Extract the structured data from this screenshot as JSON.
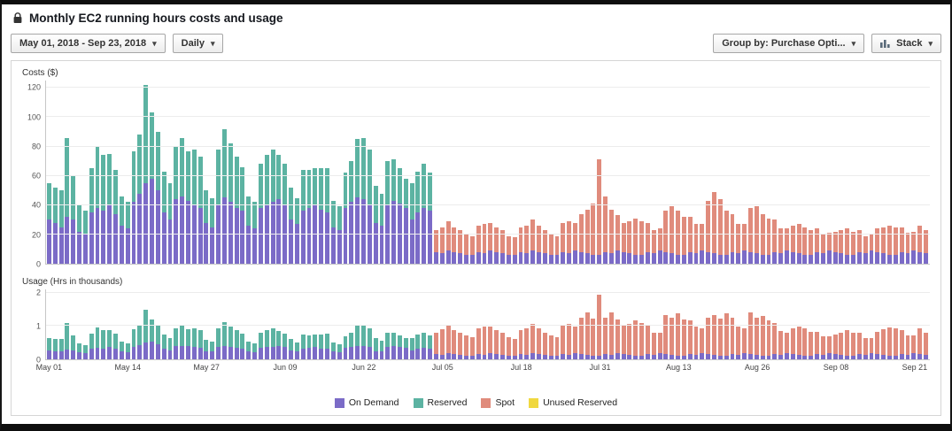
{
  "header": {
    "title": "Monthly EC2 running hours costs and usage"
  },
  "toolbar": {
    "date_range": "May 01, 2018 - Sep 23, 2018",
    "granularity": "Daily",
    "group_by": "Group by: Purchase Opti...",
    "stack": "Stack"
  },
  "legend": [
    {
      "label": "On Demand",
      "color": "#7b6bc7"
    },
    {
      "label": "Reserved",
      "color": "#5cb3a2"
    },
    {
      "label": "Spot",
      "color": "#e08b7c"
    },
    {
      "label": "Unused Reserved",
      "color": "#f0d83f"
    }
  ],
  "chart_data": [
    {
      "type": "bar",
      "stacked": true,
      "title": "Costs ($)",
      "n_bars": 146,
      "ymax": 125,
      "y_ticks": [
        0,
        20,
        40,
        60,
        80,
        100,
        120
      ],
      "series": [
        {
          "name": "On Demand",
          "color": "#7b6bc7",
          "values": [
            30,
            28,
            25,
            32,
            30,
            22,
            20,
            35,
            38,
            36,
            40,
            34,
            26,
            24,
            42,
            48,
            55,
            58,
            50,
            35,
            30,
            44,
            46,
            43,
            40,
            38,
            28,
            25,
            40,
            45,
            42,
            38,
            36,
            26,
            24,
            38,
            40,
            42,
            44,
            40,
            30,
            27,
            36,
            38,
            40,
            37,
            35,
            25,
            23,
            38,
            42,
            45,
            44,
            40,
            28,
            26,
            40,
            43,
            41,
            38,
            30,
            35,
            38,
            36,
            8,
            7,
            9,
            8,
            7,
            6,
            6,
            8,
            7,
            9,
            8,
            7,
            6,
            6,
            8,
            7,
            9,
            8,
            7,
            6,
            6,
            8,
            7,
            9,
            8,
            7,
            6,
            6,
            8,
            7,
            9,
            8,
            7,
            6,
            6,
            8,
            7,
            9,
            8,
            7,
            6,
            6,
            8,
            7,
            9,
            8,
            7,
            6,
            6,
            8,
            7,
            9,
            8,
            7,
            6,
            6,
            8,
            7,
            9,
            8,
            7,
            6,
            6,
            8,
            7,
            9,
            8,
            7,
            6,
            6,
            8,
            7,
            9,
            8,
            7,
            6,
            6,
            8,
            7,
            9,
            8,
            7
          ]
        },
        {
          "name": "Reserved",
          "color": "#5cb3a2",
          "values": [
            25,
            24,
            25,
            54,
            30,
            18,
            16,
            30,
            42,
            38,
            35,
            30,
            20,
            18,
            35,
            40,
            67,
            45,
            40,
            28,
            25,
            36,
            40,
            34,
            38,
            35,
            22,
            20,
            38,
            47,
            40,
            35,
            30,
            20,
            18,
            30,
            34,
            36,
            30,
            28,
            22,
            18,
            28,
            26,
            25,
            28,
            30,
            18,
            16,
            24,
            28,
            40,
            42,
            38,
            25,
            22,
            30,
            28,
            24,
            20,
            25,
            28,
            30,
            26
          ]
        },
        {
          "name": "Spot",
          "color": "#e08b7c",
          "start": 64,
          "values": [
            15,
            18,
            20,
            17,
            16,
            14,
            13,
            18,
            20,
            19,
            17,
            16,
            13,
            12,
            17,
            19,
            21,
            18,
            16,
            14,
            13,
            20,
            22,
            19,
            26,
            30,
            35,
            65,
            38,
            30,
            24,
            20,
            22,
            25,
            23,
            20,
            16,
            15,
            28,
            32,
            30,
            26,
            24,
            20,
            18,
            35,
            42,
            38,
            30,
            26,
            20,
            18,
            30,
            32,
            28,
            25,
            22,
            17,
            15,
            18,
            20,
            19,
            17,
            16,
            13,
            12,
            14,
            16,
            18,
            16,
            15,
            12,
            11,
            16,
            18,
            20,
            19,
            17,
            14,
            13,
            18,
            16
          ]
        },
        {
          "name": "Unused Reserved",
          "color": "#f0d83f",
          "values": []
        }
      ]
    },
    {
      "type": "bar",
      "stacked": true,
      "title": "Usage (Hrs in thousands)",
      "n_bars": 146,
      "ymax": 2.1,
      "y_ticks": [
        0,
        1,
        2
      ],
      "x_ticks": [
        "May 01",
        "May 14",
        "May 27",
        "Jun 09",
        "Jun 22",
        "Jul 05",
        "Jul 18",
        "Jul 31",
        "Aug 13",
        "Aug 26",
        "Sep 08",
        "Sep 21"
      ],
      "x_tick_positions": [
        0,
        13,
        26,
        39,
        52,
        65,
        78,
        91,
        104,
        117,
        130,
        143
      ],
      "series": [
        {
          "name": "On Demand",
          "color": "#7b6bc7",
          "values": [
            0.27,
            0.25,
            0.23,
            0.29,
            0.27,
            0.2,
            0.18,
            0.32,
            0.34,
            0.32,
            0.36,
            0.31,
            0.23,
            0.22,
            0.38,
            0.43,
            0.5,
            0.52,
            0.45,
            0.32,
            0.27,
            0.4,
            0.41,
            0.39,
            0.36,
            0.34,
            0.25,
            0.23,
            0.36,
            0.41,
            0.38,
            0.34,
            0.32,
            0.23,
            0.22,
            0.34,
            0.36,
            0.38,
            0.4,
            0.36,
            0.27,
            0.24,
            0.32,
            0.34,
            0.36,
            0.33,
            0.32,
            0.23,
            0.21,
            0.34,
            0.38,
            0.41,
            0.4,
            0.36,
            0.25,
            0.23,
            0.36,
            0.39,
            0.37,
            0.34,
            0.27,
            0.32,
            0.34,
            0.32,
            0.16,
            0.14,
            0.18,
            0.16,
            0.14,
            0.12,
            0.12,
            0.16,
            0.14,
            0.18,
            0.16,
            0.14,
            0.12,
            0.12,
            0.16,
            0.14,
            0.18,
            0.16,
            0.14,
            0.12,
            0.12,
            0.16,
            0.14,
            0.18,
            0.16,
            0.14,
            0.12,
            0.12,
            0.16,
            0.14,
            0.18,
            0.16,
            0.14,
            0.12,
            0.12,
            0.16,
            0.14,
            0.18,
            0.16,
            0.14,
            0.12,
            0.12,
            0.16,
            0.14,
            0.18,
            0.16,
            0.14,
            0.12,
            0.12,
            0.16,
            0.14,
            0.18,
            0.16,
            0.14,
            0.12,
            0.12,
            0.16,
            0.14,
            0.18,
            0.16,
            0.14,
            0.12,
            0.12,
            0.16,
            0.14,
            0.18,
            0.16,
            0.14,
            0.12,
            0.12,
            0.16,
            0.14,
            0.18,
            0.16,
            0.14,
            0.12,
            0.12,
            0.16,
            0.14,
            0.18,
            0.16,
            0.14
          ]
        },
        {
          "name": "Reserved",
          "color": "#5cb3a2",
          "values": [
            0.38,
            0.36,
            0.38,
            0.81,
            0.45,
            0.27,
            0.24,
            0.45,
            0.63,
            0.57,
            0.53,
            0.45,
            0.3,
            0.27,
            0.53,
            0.6,
            1.0,
            0.68,
            0.6,
            0.42,
            0.38,
            0.54,
            0.6,
            0.51,
            0.57,
            0.53,
            0.33,
            0.3,
            0.57,
            0.71,
            0.6,
            0.53,
            0.45,
            0.3,
            0.27,
            0.45,
            0.51,
            0.54,
            0.45,
            0.42,
            0.33,
            0.27,
            0.42,
            0.39,
            0.38,
            0.42,
            0.45,
            0.27,
            0.24,
            0.36,
            0.42,
            0.6,
            0.63,
            0.57,
            0.38,
            0.33,
            0.45,
            0.42,
            0.36,
            0.3,
            0.38,
            0.42,
            0.45,
            0.39
          ]
        },
        {
          "name": "Spot",
          "color": "#e08b7c",
          "start": 64,
          "values": [
            0.63,
            0.76,
            0.84,
            0.71,
            0.67,
            0.59,
            0.55,
            0.76,
            0.84,
            0.8,
            0.71,
            0.67,
            0.55,
            0.5,
            0.71,
            0.8,
            0.88,
            0.76,
            0.67,
            0.59,
            0.55,
            0.84,
            0.92,
            0.8,
            1.09,
            1.26,
            1.1,
            1.82,
            1.1,
            1.26,
            1.01,
            0.84,
            0.92,
            1.05,
            0.97,
            0.84,
            0.67,
            0.63,
            1.18,
            1.1,
            1.26,
            1.09,
            1.01,
            0.84,
            0.76,
            1.1,
            1.18,
            1.1,
            1.26,
            1.09,
            0.84,
            0.76,
            1.26,
            1.1,
            1.18,
            1.05,
            0.92,
            0.71,
            0.63,
            0.76,
            0.84,
            0.8,
            0.71,
            0.67,
            0.55,
            0.5,
            0.59,
            0.67,
            0.76,
            0.67,
            0.63,
            0.5,
            0.46,
            0.67,
            0.76,
            0.84,
            0.8,
            0.71,
            0.59,
            0.55,
            0.76,
            0.67
          ]
        },
        {
          "name": "Unused Reserved",
          "color": "#f0d83f",
          "values": []
        }
      ]
    }
  ]
}
